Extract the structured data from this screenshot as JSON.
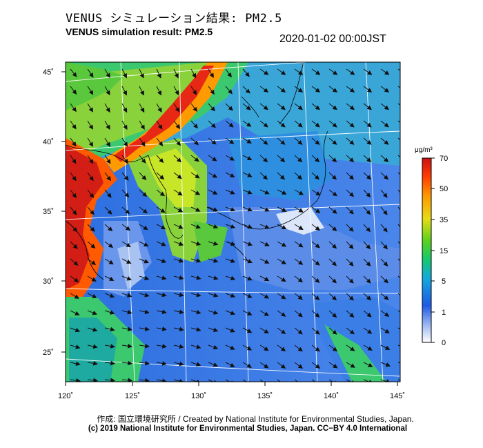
{
  "title_jp": "VENUS シミュレーション結果: PM2.5",
  "title_en": "VENUS simulation result: PM2.5",
  "timestamp": "2020-01-02 00:00JST",
  "axes": {
    "lat_labels": [
      "45˚",
      "40˚",
      "35˚",
      "30˚",
      "25˚"
    ],
    "lon_labels": [
      "120˚",
      "125˚",
      "130˚",
      "135˚",
      "140˚",
      "145˚"
    ]
  },
  "colorbar": {
    "unit": "μg/m³",
    "ticks": [
      "70",
      "50",
      "35",
      "15",
      "5",
      "1",
      "0"
    ],
    "colors": [
      "#c81414",
      "#ff5a00",
      "#ffb400",
      "#b4e61e",
      "#1ec850",
      "#1ea0d2",
      "#1e5ae6",
      "#6e96f0",
      "#ffffff"
    ]
  },
  "credit": "作成: 国立環境研究所 / Created by National Institute for Environmental Studies, Japan.",
  "license": "(c) 2019 National Institute for Environmental Studies, Japan. CC−BY 4.0 International"
}
